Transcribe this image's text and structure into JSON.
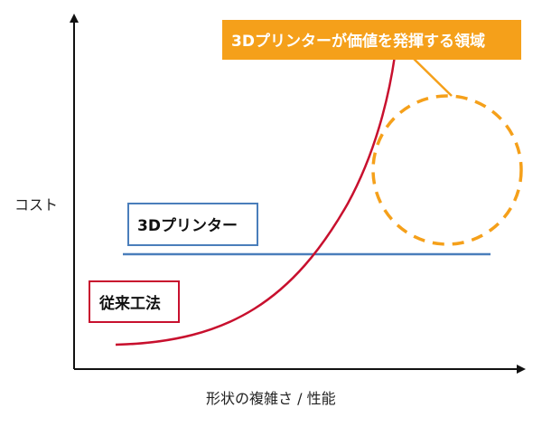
{
  "axes": {
    "x_label": "形状の複雑さ / 性能",
    "y_label": "コスト"
  },
  "labels": {
    "printer": "3Dプリンター",
    "conventional": "従来工法",
    "callout": "3Dプリンターが価値を発揮する領域"
  },
  "colors": {
    "printer_line": "#4a7ebb",
    "conventional_line": "#c8102e",
    "callout_fill": "#f5a01a",
    "axis": "#111111"
  }
}
